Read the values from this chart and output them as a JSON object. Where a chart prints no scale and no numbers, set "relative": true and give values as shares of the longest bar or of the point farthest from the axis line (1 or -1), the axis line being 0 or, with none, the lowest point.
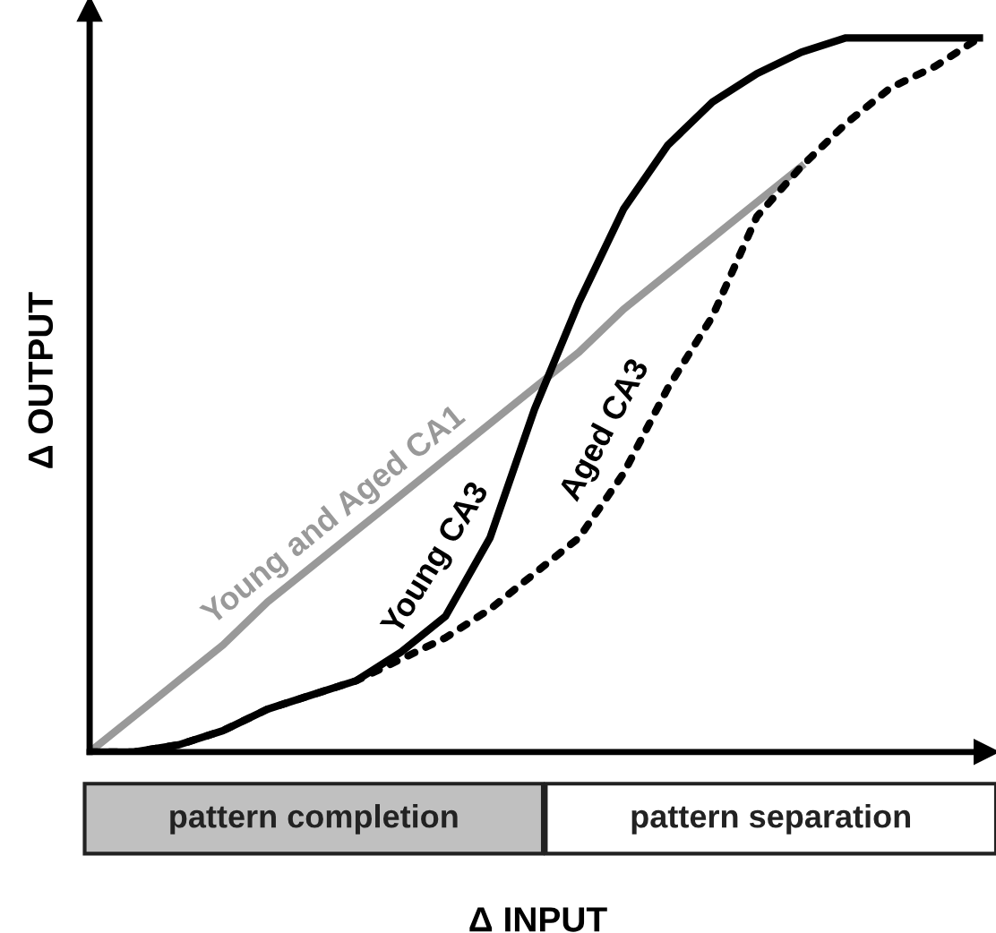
{
  "chart_data": {
    "type": "line",
    "relative": true,
    "xlabel": "Δ INPUT",
    "ylabel": "Δ OUTPUT",
    "categories": [
      null,
      null,
      null,
      null,
      null,
      null,
      null,
      null,
      null,
      null,
      null,
      null,
      null,
      null,
      null,
      null,
      null,
      null,
      null,
      null,
      null
    ],
    "series": [
      {
        "name": "Young and Aged CA1",
        "color": "#999999",
        "line_style": "solid",
        "values": [
          0,
          0.05,
          0.1,
          0.15,
          0.21,
          0.26,
          0.31,
          0.36,
          0.41,
          0.46,
          0.51,
          0.56,
          0.62,
          0.67,
          0.72,
          0.77,
          0.82,
          null,
          null,
          null,
          null
        ]
      },
      {
        "name": "Young CA3",
        "color": "#000000",
        "line_style": "solid",
        "values": [
          0,
          0,
          0.01,
          0.03,
          0.06,
          0.08,
          0.1,
          0.14,
          0.19,
          0.3,
          0.48,
          0.63,
          0.76,
          0.85,
          0.91,
          0.95,
          0.98,
          1,
          1,
          1,
          1
        ]
      },
      {
        "name": "Aged CA3",
        "color": "#000000",
        "line_style": "dotted",
        "values": [
          0,
          0,
          0.01,
          0.03,
          0.06,
          0.08,
          0.1,
          0.13,
          0.16,
          0.2,
          0.25,
          0.3,
          0.39,
          0.51,
          0.61,
          0.75,
          0.82,
          0.88,
          0.93,
          0.96,
          1
        ]
      }
    ],
    "annotations": [
      "pattern completion",
      "pattern separation"
    ]
  }
}
